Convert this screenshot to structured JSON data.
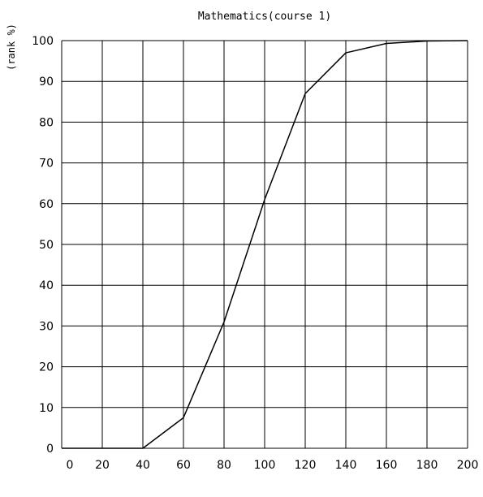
{
  "chart_data": {
    "type": "line",
    "title": "Mathematics(course 1)",
    "xlabel": "",
    "ylabel": "(rank %)",
    "xlim": [
      0,
      200
    ],
    "ylim": [
      0,
      100
    ],
    "x_ticks": [
      0,
      20,
      40,
      60,
      80,
      100,
      120,
      140,
      160,
      180,
      200
    ],
    "y_ticks": [
      0,
      10,
      20,
      30,
      40,
      50,
      60,
      70,
      80,
      90,
      100
    ],
    "grid": true,
    "legend": "none",
    "series": [
      {
        "color": "#000000",
        "x": [
          0,
          20,
          40,
          60,
          80,
          100,
          120,
          140,
          160,
          180,
          200
        ],
        "y": [
          0,
          0,
          0,
          7.5,
          31,
          61,
          87,
          97,
          99.3,
          99.9,
          100
        ]
      }
    ]
  }
}
